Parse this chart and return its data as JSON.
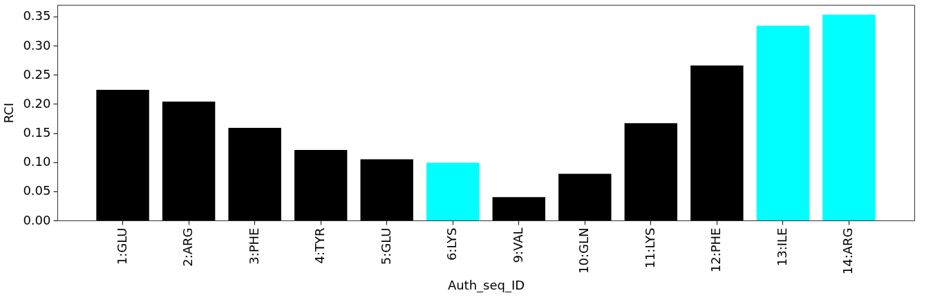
{
  "chart_data": {
    "type": "bar",
    "xlabel": "Auth_seq_ID",
    "ylabel": "RCI",
    "categories": [
      "1:GLU",
      "2:ARG",
      "3:PHE",
      "4:TYR",
      "5:GLU",
      "6:LYS",
      "9:VAL",
      "10:GLN",
      "11:LYS",
      "12:PHE",
      "13:ILE",
      "14:ARG"
    ],
    "values": [
      0.224,
      0.204,
      0.159,
      0.121,
      0.105,
      0.099,
      0.04,
      0.08,
      0.167,
      0.266,
      0.334,
      0.353
    ],
    "colors": [
      "#000000",
      "#000000",
      "#000000",
      "#000000",
      "#000000",
      "#00ffff",
      "#000000",
      "#000000",
      "#000000",
      "#000000",
      "#00ffff",
      "#00ffff"
    ],
    "ylim": [
      0,
      0.37
    ],
    "yticks": [
      {
        "value": 0,
        "label": "0.00"
      },
      {
        "value": 0.05,
        "label": "0.05"
      },
      {
        "value": 0.1,
        "label": "0.10"
      },
      {
        "value": 0.15,
        "label": "0.15"
      },
      {
        "value": 0.2,
        "label": "0.20"
      },
      {
        "value": 0.25,
        "label": "0.25"
      },
      {
        "value": 0.3,
        "label": "0.30"
      },
      {
        "value": 0.35,
        "label": "0.35"
      }
    ],
    "grid": false
  }
}
